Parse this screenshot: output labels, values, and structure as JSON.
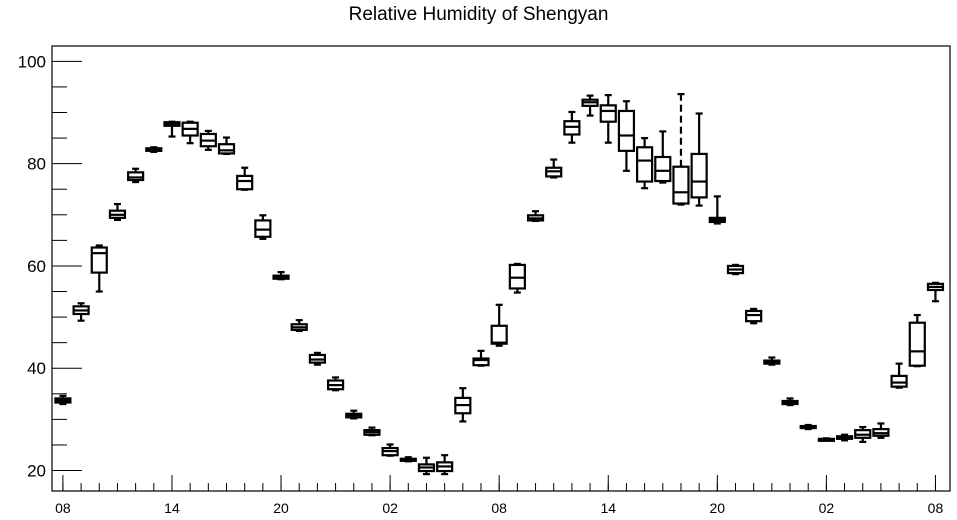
{
  "chart_data": {
    "type": "boxplot",
    "title": "Relative Humidity of Shengyan",
    "xlabel": "",
    "ylabel": "",
    "ylim": [
      16,
      103
    ],
    "yticks": [
      20,
      40,
      60,
      80,
      100
    ],
    "xticks": [
      {
        "pos": 0,
        "label": "08"
      },
      {
        "pos": 6,
        "label": "14"
      },
      {
        "pos": 12,
        "label": "20"
      },
      {
        "pos": 18,
        "label": "02"
      },
      {
        "pos": 24,
        "label": "08"
      },
      {
        "pos": 30,
        "label": "14"
      },
      {
        "pos": 36,
        "label": "20"
      },
      {
        "pos": 42,
        "label": "02"
      },
      {
        "pos": 48,
        "label": "08"
      }
    ],
    "xlim": [
      -0.6,
      48.8
    ],
    "grid": false,
    "boxes": [
      {
        "x": 0,
        "min": 33.0,
        "q1": 33.3,
        "median": 33.7,
        "q3": 34.1,
        "max": 34.6
      },
      {
        "x": 1,
        "min": 49.3,
        "q1": 50.6,
        "median": 51.3,
        "q3": 52.1,
        "max": 52.7
      },
      {
        "x": 2,
        "min": 55.0,
        "q1": 58.7,
        "median": 62.5,
        "q3": 63.6,
        "max": 64.0
      },
      {
        "x": 3,
        "min": 69.0,
        "q1": 69.4,
        "median": 70.0,
        "q3": 70.8,
        "max": 72.1
      },
      {
        "x": 4,
        "min": 76.4,
        "q1": 76.8,
        "median": 77.3,
        "q3": 78.3,
        "max": 79.0
      },
      {
        "x": 5,
        "min": 82.3,
        "q1": 82.5,
        "median": 82.8,
        "q3": 83.0,
        "max": 83.2
      },
      {
        "x": 6,
        "min": 85.3,
        "q1": 87.4,
        "median": 87.8,
        "q3": 88.1,
        "max": 88.2
      },
      {
        "x": 7,
        "min": 84.0,
        "q1": 85.5,
        "median": 86.8,
        "q3": 88.0,
        "max": 88.2
      },
      {
        "x": 8,
        "min": 82.7,
        "q1": 83.4,
        "median": 84.5,
        "q3": 85.8,
        "max": 86.4
      },
      {
        "x": 9,
        "min": 81.9,
        "q1": 82.0,
        "median": 82.6,
        "q3": 83.8,
        "max": 85.1
      },
      {
        "x": 10,
        "min": 74.9,
        "q1": 75.0,
        "median": 76.6,
        "q3": 77.6,
        "max": 79.2
      },
      {
        "x": 11,
        "min": 65.3,
        "q1": 65.7,
        "median": 67.1,
        "q3": 68.9,
        "max": 69.9
      },
      {
        "x": 12,
        "min": 57.4,
        "q1": 57.5,
        "median": 57.8,
        "q3": 58.1,
        "max": 58.8
      },
      {
        "x": 13,
        "min": 47.3,
        "q1": 47.5,
        "median": 48.0,
        "q3": 48.6,
        "max": 49.4
      },
      {
        "x": 14,
        "min": 40.7,
        "q1": 41.1,
        "median": 41.7,
        "q3": 42.6,
        "max": 43.0
      },
      {
        "x": 15,
        "min": 35.7,
        "q1": 35.9,
        "median": 36.7,
        "q3": 37.6,
        "max": 38.2
      },
      {
        "x": 16,
        "min": 30.2,
        "q1": 30.4,
        "median": 30.8,
        "q3": 31.1,
        "max": 31.7
      },
      {
        "x": 17,
        "min": 26.9,
        "q1": 27.0,
        "median": 27.5,
        "q3": 27.9,
        "max": 28.4
      },
      {
        "x": 18,
        "min": 22.9,
        "q1": 23.0,
        "median": 23.8,
        "q3": 24.4,
        "max": 25.1
      },
      {
        "x": 19,
        "min": 21.8,
        "q1": 21.9,
        "median": 22.1,
        "q3": 22.3,
        "max": 22.6
      },
      {
        "x": 20,
        "min": 19.3,
        "q1": 19.9,
        "median": 20.6,
        "q3": 21.2,
        "max": 22.5
      },
      {
        "x": 21,
        "min": 19.3,
        "q1": 19.9,
        "median": 20.8,
        "q3": 21.6,
        "max": 23.0
      },
      {
        "x": 22,
        "min": 29.6,
        "q1": 31.2,
        "median": 32.8,
        "q3": 34.2,
        "max": 36.1
      },
      {
        "x": 23,
        "min": 40.5,
        "q1": 40.6,
        "median": 41.6,
        "q3": 41.9,
        "max": 43.4
      },
      {
        "x": 24,
        "min": 44.4,
        "q1": 44.8,
        "median": 45.0,
        "q3": 48.3,
        "max": 52.4
      },
      {
        "x": 25,
        "min": 54.8,
        "q1": 55.6,
        "median": 57.7,
        "q3": 60.2,
        "max": 60.4
      },
      {
        "x": 26,
        "min": 68.8,
        "q1": 68.9,
        "median": 69.3,
        "q3": 69.9,
        "max": 70.7
      },
      {
        "x": 27,
        "min": 77.3,
        "q1": 77.5,
        "median": 78.5,
        "q3": 79.2,
        "max": 80.8
      },
      {
        "x": 28,
        "min": 84.1,
        "q1": 85.7,
        "median": 87.2,
        "q3": 88.3,
        "max": 90.1
      },
      {
        "x": 29,
        "min": 89.4,
        "q1": 91.3,
        "median": 92.0,
        "q3": 92.5,
        "max": 93.3
      },
      {
        "x": 30,
        "min": 84.1,
        "q1": 88.2,
        "median": 90.3,
        "q3": 91.4,
        "max": 93.4
      },
      {
        "x": 31,
        "min": 78.6,
        "q1": 82.5,
        "median": 85.5,
        "q3": 90.3,
        "max": 92.2
      },
      {
        "x": 32,
        "min": 75.2,
        "q1": 76.5,
        "median": 80.6,
        "q3": 83.2,
        "max": 85.0
      },
      {
        "x": 33,
        "min": 76.3,
        "q1": 76.6,
        "median": 78.6,
        "q3": 81.3,
        "max": 86.3
      },
      {
        "x": 34,
        "min": 72.0,
        "q1": 72.2,
        "median": 74.4,
        "q3": 79.4,
        "max": 93.6
      },
      {
        "x": 35,
        "min": 71.8,
        "q1": 73.4,
        "median": 76.5,
        "q3": 81.9,
        "max": 89.8
      },
      {
        "x": 36,
        "min": 68.3,
        "q1": 68.6,
        "median": 69.0,
        "q3": 69.4,
        "max": 73.6
      },
      {
        "x": 37,
        "min": 58.4,
        "q1": 58.6,
        "median": 59.3,
        "q3": 60.0,
        "max": 60.2
      },
      {
        "x": 38,
        "min": 48.8,
        "q1": 49.2,
        "median": 50.4,
        "q3": 51.2,
        "max": 51.6
      },
      {
        "x": 39,
        "min": 40.7,
        "q1": 40.9,
        "median": 41.2,
        "q3": 41.5,
        "max": 42.1
      },
      {
        "x": 40,
        "min": 32.8,
        "q1": 33.0,
        "median": 33.3,
        "q3": 33.6,
        "max": 34.1
      },
      {
        "x": 41,
        "min": 28.1,
        "q1": 28.3,
        "median": 28.5,
        "q3": 28.7,
        "max": 28.9
      },
      {
        "x": 42,
        "min": 25.9,
        "q1": 26.0,
        "median": 26.1,
        "q3": 26.2,
        "max": 26.3
      },
      {
        "x": 43,
        "min": 25.9,
        "q1": 26.2,
        "median": 26.5,
        "q3": 26.7,
        "max": 27.0
      },
      {
        "x": 44,
        "min": 25.6,
        "q1": 26.4,
        "median": 27.0,
        "q3": 27.9,
        "max": 28.5
      },
      {
        "x": 45,
        "min": 26.4,
        "q1": 26.8,
        "median": 27.3,
        "q3": 28.1,
        "max": 29.2
      },
      {
        "x": 46,
        "min": 36.2,
        "q1": 36.4,
        "median": 37.2,
        "q3": 38.5,
        "max": 40.9
      },
      {
        "x": 47,
        "min": 40.4,
        "q1": 40.5,
        "median": 43.3,
        "q3": 48.9,
        "max": 50.4
      },
      {
        "x": 48,
        "min": 53.1,
        "q1": 55.3,
        "median": 55.9,
        "q3": 56.5,
        "max": 56.7
      }
    ]
  }
}
